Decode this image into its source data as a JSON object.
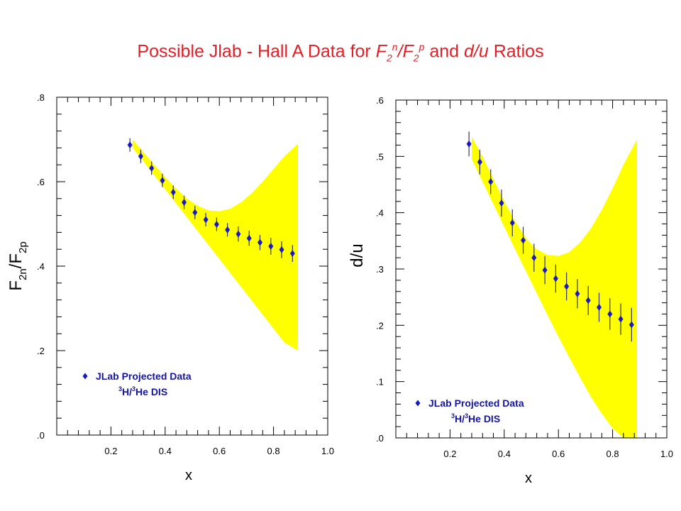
{
  "title": {
    "prefix": "Possible Jlab - Hall A Data for ",
    "f1": "F",
    "sub1": "2",
    "sup1": "n",
    "slash": "/F",
    "sub2": "2",
    "sup2": "p",
    "mid": " and ",
    "du": "d/u",
    "suffix": " Ratios"
  },
  "colors": {
    "title": "#e41e26",
    "band": "#ffff00",
    "marker": "#1a1ac0",
    "axis": "#000000"
  },
  "chart_data": [
    {
      "type": "scatter",
      "xlabel": "x",
      "ylabel_parts": {
        "a": "F",
        "a_sub": "2n",
        "b": "/F",
        "b_sub": "2p"
      },
      "xlim": [
        0.0,
        1.0
      ],
      "ylim": [
        0.0,
        0.8
      ],
      "xticks": [
        0.2,
        0.4,
        0.6,
        0.8,
        1.0
      ],
      "xtick_labels": [
        "0.2",
        "0.4",
        "0.6",
        "0.8",
        "1.0"
      ],
      "yticks": [
        0.0,
        0.2,
        0.4,
        0.6,
        0.8
      ],
      "ytick_labels": [
        ".0",
        ".2",
        ".4",
        ".6",
        ".8"
      ],
      "grid": false,
      "legend_position": "bottom-left",
      "legend": {
        "line1": "JLab Projected Data",
        "line2_iso": "3",
        "line2_a": "H/",
        "line2_iso2": "3",
        "line2_b": "He DIS"
      },
      "band": {
        "x": [
          0.28,
          0.32,
          0.36,
          0.4,
          0.44,
          0.48,
          0.52,
          0.56,
          0.6,
          0.64,
          0.68,
          0.72,
          0.76,
          0.8,
          0.84,
          0.89
        ],
        "upper": [
          0.7,
          0.67,
          0.64,
          0.611,
          0.584,
          0.56,
          0.543,
          0.532,
          0.53,
          0.536,
          0.551,
          0.573,
          0.6,
          0.63,
          0.66,
          0.69
        ],
        "lower": [
          0.68,
          0.648,
          0.615,
          0.582,
          0.549,
          0.516,
          0.483,
          0.45,
          0.417,
          0.384,
          0.351,
          0.318,
          0.285,
          0.252,
          0.219,
          0.2
        ]
      },
      "series": [
        {
          "name": "JLab Projected Data",
          "x": [
            0.27,
            0.31,
            0.35,
            0.39,
            0.43,
            0.47,
            0.51,
            0.55,
            0.59,
            0.63,
            0.67,
            0.71,
            0.75,
            0.79,
            0.83,
            0.87
          ],
          "y": [
            0.687,
            0.66,
            0.632,
            0.603,
            0.575,
            0.551,
            0.527,
            0.51,
            0.499,
            0.486,
            0.476,
            0.466,
            0.456,
            0.447,
            0.439,
            0.43
          ],
          "err": [
            0.016,
            0.016,
            0.016,
            0.016,
            0.016,
            0.016,
            0.016,
            0.016,
            0.016,
            0.016,
            0.018,
            0.018,
            0.018,
            0.02,
            0.02,
            0.02
          ]
        }
      ]
    },
    {
      "type": "scatter",
      "xlabel": "x",
      "ylabel": "d/u",
      "xlim": [
        0.0,
        1.0
      ],
      "ylim": [
        0.0,
        0.6
      ],
      "xticks": [
        0.2,
        0.4,
        0.6,
        0.8,
        1.0
      ],
      "xtick_labels": [
        "0.2",
        "0.4",
        "0.6",
        "0.8",
        "1.0"
      ],
      "yticks": [
        0.0,
        0.1,
        0.2,
        0.3,
        0.4,
        0.5,
        0.6
      ],
      "ytick_labels": [
        ".0",
        ".1",
        ".2",
        ".3",
        ".4",
        ".5",
        ".6"
      ],
      "grid": false,
      "legend_position": "bottom-left",
      "legend": {
        "line1": "JLab Projected Data",
        "line2_iso": "3",
        "line2_a": "H/",
        "line2_iso2": "3",
        "line2_b": "He DIS"
      },
      "band": {
        "x": [
          0.28,
          0.32,
          0.36,
          0.4,
          0.44,
          0.48,
          0.52,
          0.56,
          0.6,
          0.64,
          0.68,
          0.72,
          0.76,
          0.8,
          0.84,
          0.89
        ],
        "upper": [
          0.535,
          0.5,
          0.46,
          0.42,
          0.385,
          0.355,
          0.335,
          0.325,
          0.323,
          0.33,
          0.347,
          0.372,
          0.405,
          0.443,
          0.485,
          0.53
        ],
        "lower": [
          0.495,
          0.455,
          0.415,
          0.375,
          0.335,
          0.296,
          0.257,
          0.218,
          0.18,
          0.143,
          0.107,
          0.073,
          0.043,
          0.017,
          0.0,
          0.0
        ]
      },
      "series": [
        {
          "name": "JLab Projected Data",
          "x": [
            0.27,
            0.31,
            0.35,
            0.39,
            0.43,
            0.47,
            0.51,
            0.55,
            0.59,
            0.63,
            0.67,
            0.71,
            0.75,
            0.79,
            0.83,
            0.87
          ],
          "y": [
            0.522,
            0.49,
            0.455,
            0.417,
            0.382,
            0.351,
            0.32,
            0.298,
            0.283,
            0.269,
            0.256,
            0.244,
            0.232,
            0.22,
            0.211,
            0.201
          ],
          "err": [
            0.022,
            0.022,
            0.022,
            0.024,
            0.024,
            0.024,
            0.025,
            0.025,
            0.025,
            0.025,
            0.026,
            0.026,
            0.026,
            0.028,
            0.028,
            0.03
          ]
        }
      ]
    }
  ]
}
